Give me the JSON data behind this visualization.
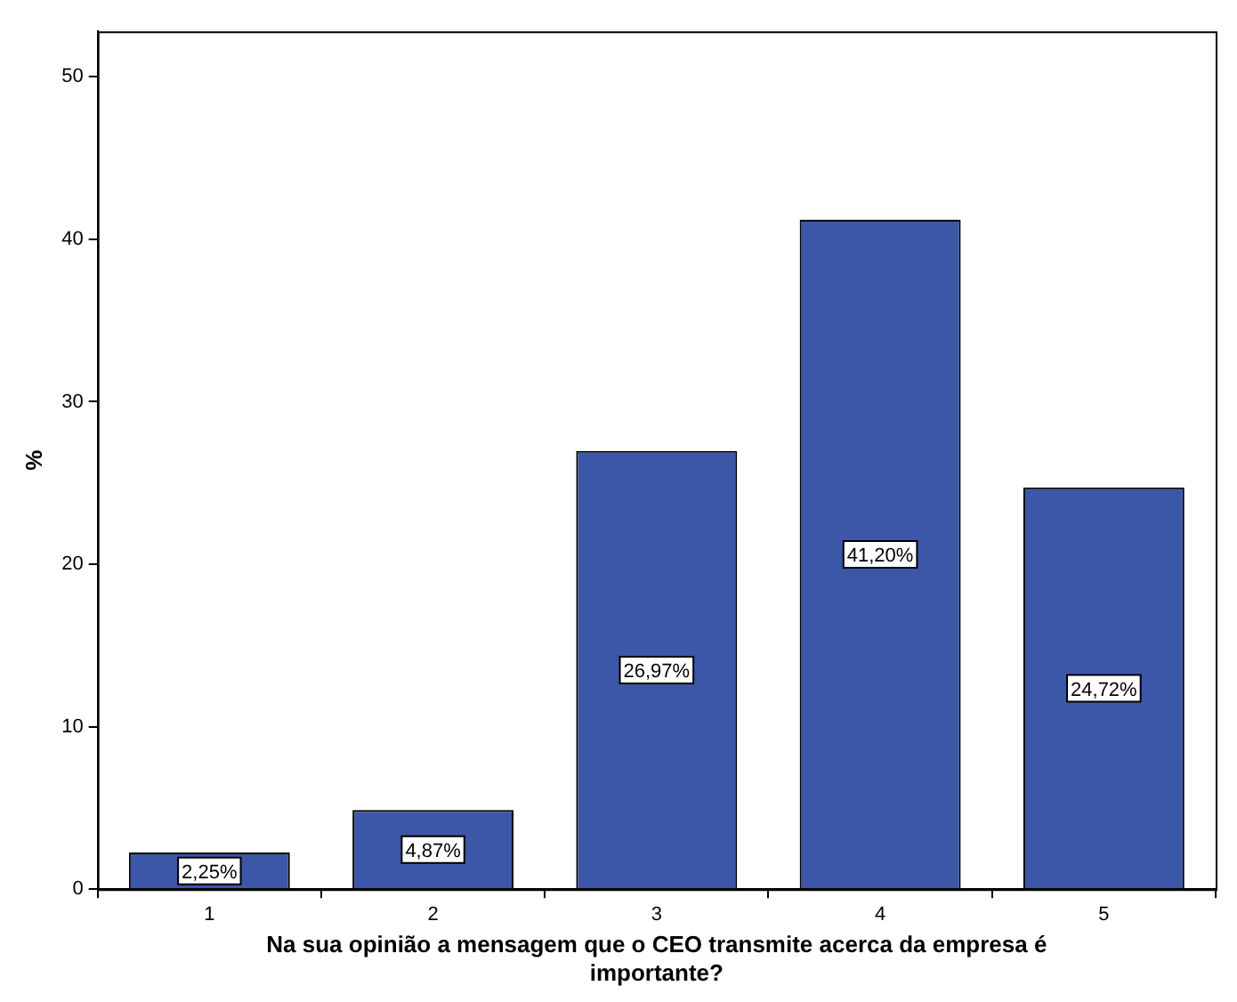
{
  "chart_data": {
    "type": "bar",
    "xlabel": "Na sua opinião a mensagem que o CEO transmite acerca da empresa é importante?",
    "ylabel": "%",
    "categories": [
      "1",
      "2",
      "3",
      "4",
      "5"
    ],
    "values": [
      2.25,
      4.87,
      26.97,
      41.2,
      24.72
    ],
    "value_labels": [
      "2,25%",
      "4,87%",
      "26,97%",
      "41,20%",
      "24,72%"
    ],
    "color": "#3c56a8",
    "ylim": [
      0,
      52.8
    ],
    "yticks": [
      0,
      10,
      20,
      30,
      40,
      50
    ],
    "grid": false,
    "legend": false
  }
}
